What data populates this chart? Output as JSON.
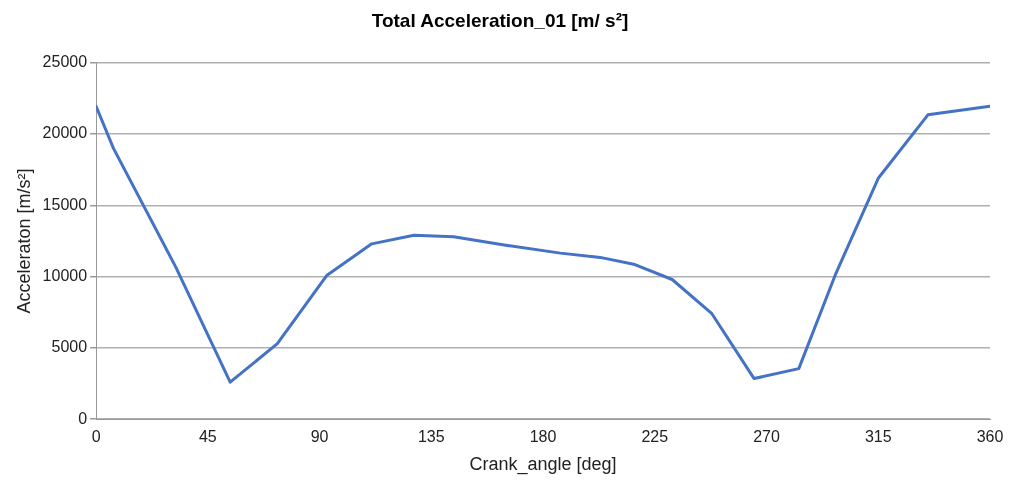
{
  "chart_data": {
    "type": "line",
    "title": "Total Acceleration_01 [m/ s²]",
    "xlabel": "Crank_angle [deg]",
    "ylabel": "Acceleraton [m/s²]",
    "x": [
      0,
      7,
      32,
      54,
      73,
      93,
      111,
      128,
      144,
      165,
      187,
      203,
      217,
      232,
      248,
      265,
      283,
      298,
      315,
      335,
      360
    ],
    "series": [
      {
        "color": "#4472c4",
        "values": [
          21950,
          19000,
          10700,
          2600,
          5300,
          10100,
          12300,
          12900,
          12800,
          12200,
          11650,
          11350,
          10850,
          9800,
          7400,
          2850,
          3550,
          10250,
          16900,
          21350,
          21950
        ]
      }
    ],
    "xlim": [
      0,
      360
    ],
    "xticks": [
      0,
      45,
      90,
      135,
      180,
      225,
      270,
      315,
      360
    ],
    "ylim": [
      0,
      25000
    ],
    "yticks": [
      0,
      5000,
      10000,
      15000,
      20000,
      25000
    ],
    "grid": "y",
    "legend": false,
    "marker": "none",
    "line_style": "solid"
  }
}
